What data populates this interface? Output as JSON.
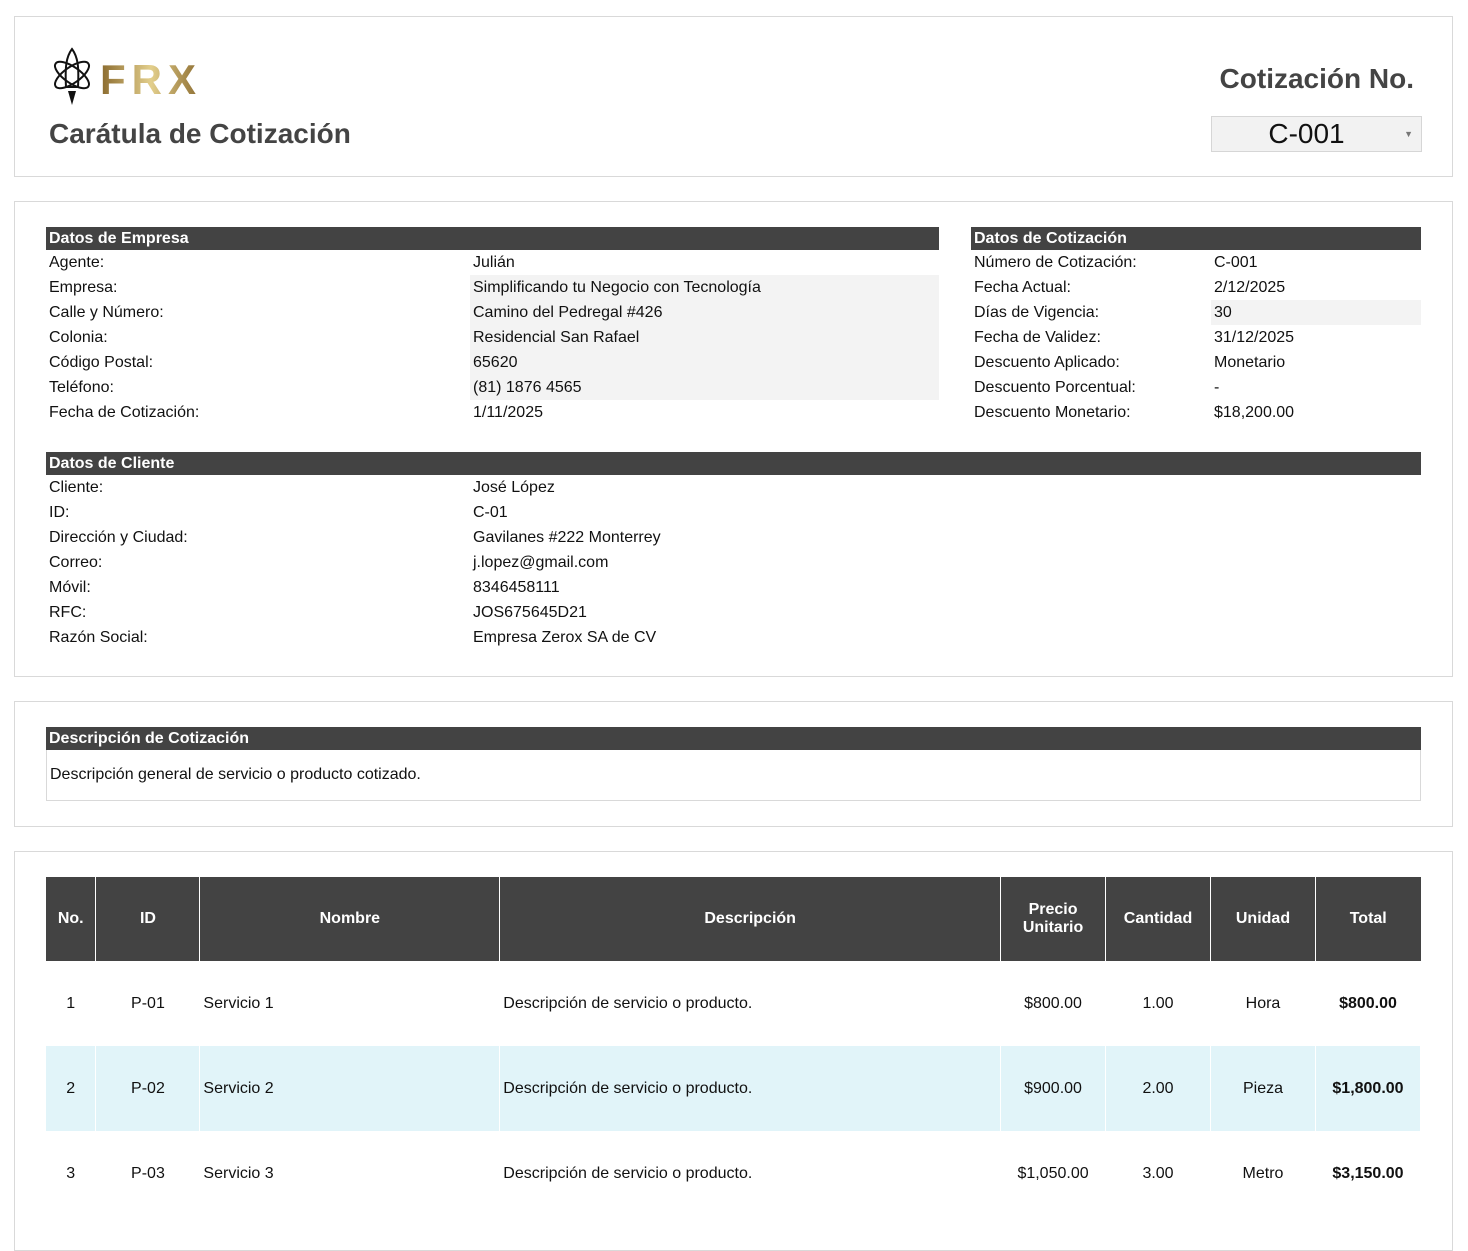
{
  "header": {
    "logo_text": "FRX",
    "title": "Carátula de Cotización",
    "quote_label": "Cotización No.",
    "quote_selected": "C-001",
    "brand_gold": "#b08a3e"
  },
  "empresa": {
    "heading": "Datos de Empresa",
    "rows": [
      {
        "label": "Agente:",
        "value": "Julián"
      },
      {
        "label": "Empresa:",
        "value": "Simplificando tu Negocio con Tecnología"
      },
      {
        "label": "Calle y Número:",
        "value": "Camino del Pedregal #426"
      },
      {
        "label": "Colonia:",
        "value": "Residencial San Rafael"
      },
      {
        "label": "Código Postal:",
        "value": "65620"
      },
      {
        "label": "Teléfono:",
        "value": "(81) 1876 4565"
      },
      {
        "label": "Fecha de Cotización:",
        "value": "1/11/2025"
      }
    ]
  },
  "cotizacion": {
    "heading": "Datos de Cotización",
    "rows": [
      {
        "label": "Número de Cotización:",
        "value": "C-001"
      },
      {
        "label": "Fecha Actual:",
        "value": "2/12/2025"
      },
      {
        "label": "Días de Vigencia:",
        "value": "30"
      },
      {
        "label": "Fecha de Validez:",
        "value": "31/12/2025"
      },
      {
        "label": "Descuento Aplicado:",
        "value": "Monetario"
      },
      {
        "label": "Descuento Porcentual:",
        "value": "-"
      },
      {
        "label": "Descuento Monetario:",
        "value": "$18,200.00"
      }
    ]
  },
  "cliente": {
    "heading": "Datos de Cliente",
    "rows": [
      {
        "label": "Cliente:",
        "value": "José López"
      },
      {
        "label": "ID:",
        "value": "C-01"
      },
      {
        "label": "Dirección y Ciudad:",
        "value": "Gavilanes #222 Monterrey"
      },
      {
        "label": "Correo:",
        "value": "j.lopez@gmail.com"
      },
      {
        "label": "Móvil:",
        "value": "8346458111"
      },
      {
        "label": "RFC:",
        "value": "JOS675645D21"
      },
      {
        "label": "Razón Social:",
        "value": "Empresa Zerox SA de CV"
      }
    ]
  },
  "descripcion": {
    "heading": "Descripción de Cotización",
    "text": "Descripción general de servicio o producto cotizado."
  },
  "items": {
    "columns": [
      "No.",
      "ID",
      "Nombre",
      "Descripción",
      "Precio Unitario",
      "Cantidad",
      "Unidad",
      "Total"
    ],
    "rows": [
      [
        "1",
        "P-01",
        "Servicio 1",
        "Descripción de servicio o producto.",
        "$800.00",
        "1.00",
        "Hora",
        "$800.00"
      ],
      [
        "2",
        "P-02",
        "Servicio 2",
        "Descripción de servicio o producto.",
        "$900.00",
        "2.00",
        "Pieza",
        "$1,800.00"
      ],
      [
        "3",
        "P-03",
        "Servicio 3",
        "Descripción de servicio o producto.",
        "$1,050.00",
        "3.00",
        "Metro",
        "$3,150.00"
      ]
    ]
  }
}
